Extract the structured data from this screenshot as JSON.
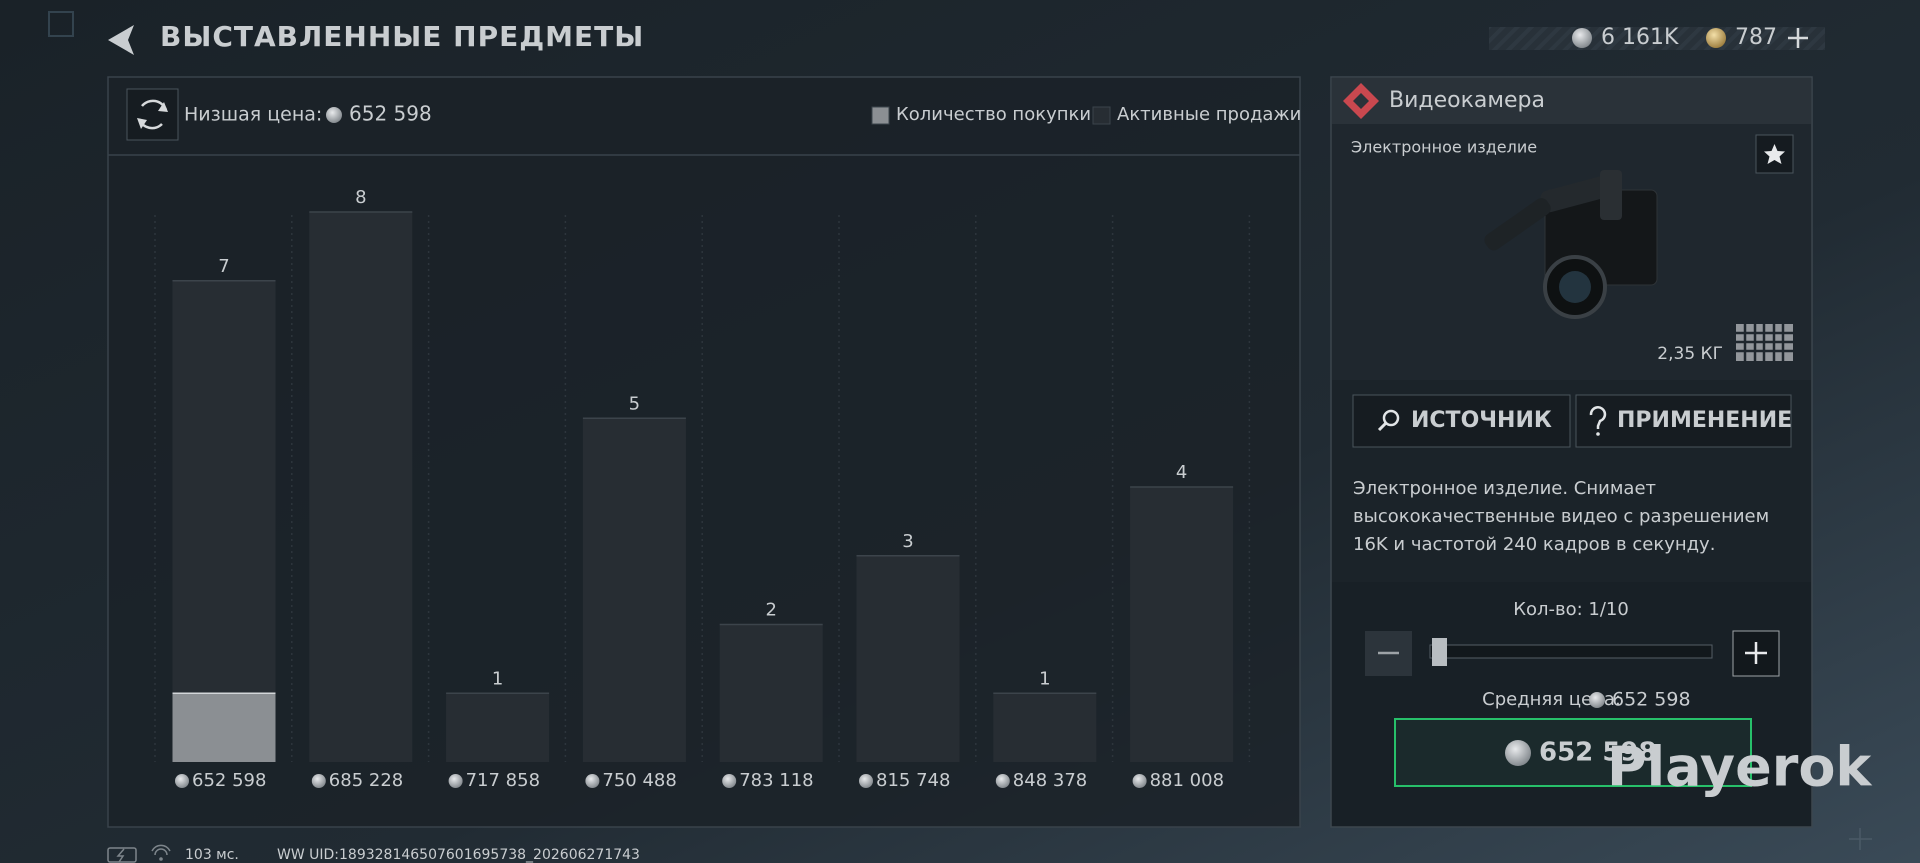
{
  "header": {
    "title": "ВЫСТАВЛЕННЫЕ ПРЕДМЕТЫ",
    "currency_1": "6 161K",
    "currency_2": "787"
  },
  "chart_data": {
    "type": "bar",
    "lowest_price_label": "Низшая цена:",
    "lowest_price": "652 598",
    "categories": [
      "652 598",
      "685 228",
      "717 858",
      "750 488",
      "783 118",
      "815 748",
      "848 378",
      "881 008"
    ],
    "series": [
      {
        "name": "Количество покупки",
        "color": "#8b8f93",
        "values": [
          1,
          0,
          0,
          0,
          0,
          0,
          0,
          0
        ]
      },
      {
        "name": "Активные продажи",
        "color": "#272d33",
        "values": [
          7,
          8,
          1,
          5,
          2,
          3,
          1,
          4
        ]
      }
    ],
    "ylim": [
      0,
      8
    ]
  },
  "item": {
    "name": "Видеокамера",
    "kind": "Электронное изделие",
    "weight": "2,35 КГ",
    "source_button": "ИСТОЧНИК",
    "usage_button": "ПРИМЕНЕНИЕ",
    "description": [
      "Электронное изделие. Снимает",
      "высококачественные видео с разрешением",
      "16K и частотой 240 кадров в секунду."
    ],
    "quantity": "Кол-во: 1/10",
    "average_price_label": "Средняя цена:",
    "average_price": "652 598",
    "buy_price": "652 598"
  },
  "status": {
    "ping": "103 мс.",
    "uid": "WW UID:189328146507601695738_202606271743"
  },
  "watermark": "Playerok"
}
